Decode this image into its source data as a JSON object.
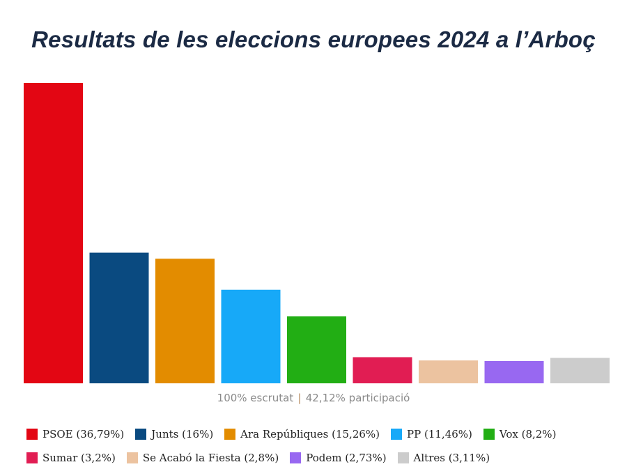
{
  "title": "Resultats de les eleccions europees 2024 a l’Arboç",
  "footer": {
    "scrutiny": "100% escrutat",
    "separator": "|",
    "participation": "42,12% participació"
  },
  "chart_data": {
    "type": "bar",
    "title": "Resultats de les eleccions europees 2024 a l’Arboç",
    "xlabel": "",
    "ylabel": "",
    "ylim": [
      0,
      38.5
    ],
    "grid": false,
    "legend_position": "bottom",
    "categories": [
      "PSOE",
      "Junts",
      "Ara Repúbliques",
      "PP",
      "Vox",
      "Sumar",
      "Se Acabó la Fiesta",
      "Podem",
      "Altres"
    ],
    "values": [
      36.79,
      16,
      15.26,
      11.46,
      8.2,
      3.2,
      2.8,
      2.73,
      3.11
    ],
    "colors": [
      "#e30613",
      "#0a4a80",
      "#e38c00",
      "#17a9f8",
      "#22ae14",
      "#e11d53",
      "#ecc3a0",
      "#9868f1",
      "#cccccc"
    ],
    "legend_labels": [
      "PSOE (36,79%)",
      "Junts (16%)",
      "Ara Repúbliques (15,26%)",
      "PP (11,46%)",
      "Vox (8,2%)",
      "Sumar (3,2%)",
      "Se Acabó la Fiesta (2,8%)",
      "Podem (2,73%)",
      "Altres (3,11%)"
    ]
  }
}
